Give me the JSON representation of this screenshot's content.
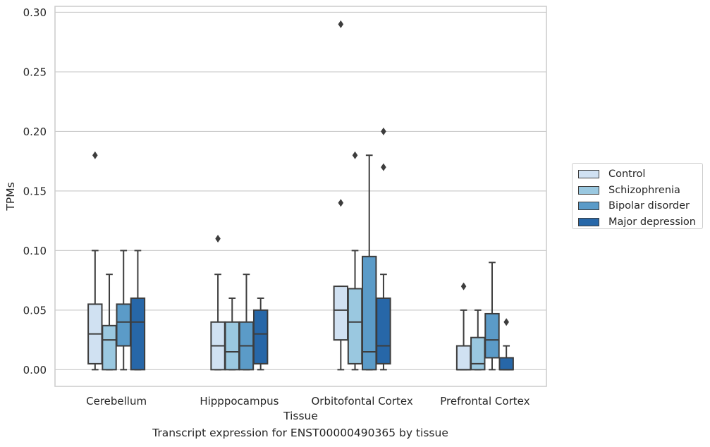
{
  "chart_data": {
    "type": "box",
    "title": "",
    "caption": "Transcript expression for ENST00000490365 by tissue",
    "xlabel": "Tissue",
    "ylabel": "TPMs",
    "ylim": [
      -0.014,
      0.305
    ],
    "yticks": [
      "0.00",
      "0.05",
      "0.10",
      "0.15",
      "0.20",
      "0.25",
      "0.30"
    ],
    "ytick_values": [
      0,
      0.05,
      0.1,
      0.15,
      0.2,
      0.25,
      0.3
    ],
    "grid": "horizontal",
    "legend_position": "right",
    "categories": [
      "Cerebellum",
      "Hipppocampus",
      "Orbitofontal Cortex",
      "Prefrontal Cortex"
    ],
    "series": [
      {
        "name": "Control",
        "color": "#d0e1f2",
        "boxes": [
          {
            "whislo": 0,
            "q1": 0.005,
            "med": 0.03,
            "q3": 0.055,
            "whishi": 0.1,
            "fliers": [
              0.18
            ]
          },
          {
            "whislo": 0,
            "q1": 0,
            "med": 0.02,
            "q3": 0.04,
            "whishi": 0.08,
            "fliers": [
              0.11
            ]
          },
          {
            "whislo": 0,
            "q1": 0.025,
            "med": 0.05,
            "q3": 0.07,
            "whishi": 0.07,
            "fliers": [
              0.14,
              0.29
            ]
          },
          {
            "whislo": 0,
            "q1": 0,
            "med": 0,
            "q3": 0.02,
            "whishi": 0.05,
            "fliers": [
              0.07
            ]
          }
        ]
      },
      {
        "name": "Schizophrenia",
        "color": "#9ac8e0",
        "boxes": [
          {
            "whislo": 0,
            "q1": 0,
            "med": 0.025,
            "q3": 0.037,
            "whishi": 0.08,
            "fliers": []
          },
          {
            "whislo": 0,
            "q1": 0,
            "med": 0.015,
            "q3": 0.04,
            "whishi": 0.06,
            "fliers": []
          },
          {
            "whislo": 0,
            "q1": 0.005,
            "med": 0.04,
            "q3": 0.068,
            "whishi": 0.1,
            "fliers": [
              0.18
            ]
          },
          {
            "whislo": 0,
            "q1": 0,
            "med": 0.005,
            "q3": 0.027,
            "whishi": 0.05,
            "fliers": []
          }
        ]
      },
      {
        "name": "Bipolar disorder",
        "color": "#5b9bc8",
        "boxes": [
          {
            "whislo": 0,
            "q1": 0.02,
            "med": 0.04,
            "q3": 0.055,
            "whishi": 0.1,
            "fliers": []
          },
          {
            "whislo": 0,
            "q1": 0,
            "med": 0.02,
            "q3": 0.04,
            "whishi": 0.08,
            "fliers": []
          },
          {
            "whislo": 0,
            "q1": 0,
            "med": 0.015,
            "q3": 0.095,
            "whishi": 0.18,
            "fliers": []
          },
          {
            "whislo": 0,
            "q1": 0.01,
            "med": 0.025,
            "q3": 0.047,
            "whishi": 0.09,
            "fliers": []
          }
        ]
      },
      {
        "name": "Major depression",
        "color": "#2767a8",
        "boxes": [
          {
            "whislo": 0,
            "q1": 0,
            "med": 0.04,
            "q3": 0.06,
            "whishi": 0.1,
            "fliers": []
          },
          {
            "whislo": 0,
            "q1": 0.005,
            "med": 0.03,
            "q3": 0.05,
            "whishi": 0.06,
            "fliers": []
          },
          {
            "whislo": 0,
            "q1": 0.005,
            "med": 0.02,
            "q3": 0.06,
            "whishi": 0.08,
            "fliers": [
              0.17,
              0.2
            ]
          },
          {
            "whislo": 0,
            "q1": 0,
            "med": 0,
            "q3": 0.01,
            "whishi": 0.02,
            "fliers": [
              0.04
            ]
          }
        ]
      }
    ]
  }
}
